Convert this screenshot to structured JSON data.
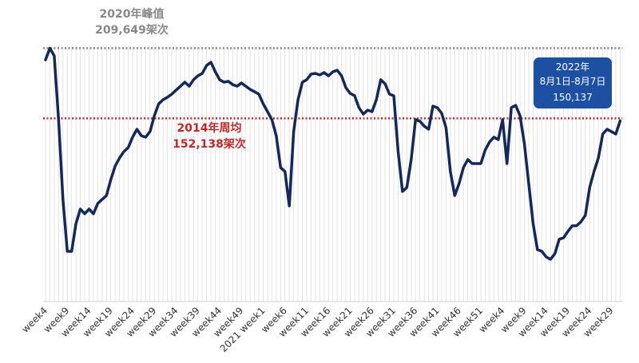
{
  "chart_data": {
    "type": "line",
    "categories": [
      "week4",
      null,
      null,
      null,
      null,
      "week9",
      null,
      null,
      null,
      null,
      "week14",
      null,
      null,
      null,
      null,
      "week19",
      null,
      null,
      null,
      null,
      "week24",
      null,
      null,
      null,
      null,
      "week29",
      null,
      null,
      null,
      null,
      "week34",
      null,
      null,
      null,
      null,
      "week39",
      null,
      null,
      null,
      null,
      "week44",
      null,
      null,
      null,
      null,
      "week49",
      null,
      null,
      null,
      null,
      "2021 week1",
      null,
      null,
      null,
      null,
      "week6",
      null,
      null,
      null,
      null,
      "week11",
      null,
      null,
      null,
      null,
      "week16",
      null,
      null,
      null,
      null,
      "week21",
      null,
      null,
      null,
      null,
      "week26",
      null,
      null,
      null,
      null,
      "week31",
      null,
      null,
      null,
      null,
      "week36",
      null,
      null,
      null,
      null,
      "week41",
      null,
      null,
      null,
      null,
      "week46",
      null,
      null,
      null,
      null,
      "week51",
      null,
      null,
      null,
      null,
      "week4",
      null,
      null,
      null,
      null,
      "week9",
      null,
      null,
      null,
      null,
      "week14",
      null,
      null,
      null,
      null,
      "week19",
      null,
      null,
      null,
      null,
      "week24",
      null,
      null,
      null,
      null,
      "week29",
      null,
      null
    ],
    "series": [
      {
        "color": "#14295a",
        "values": [
          200100,
          209649,
          203400,
          151000,
          85700,
          43200,
          43200,
          66000,
          77800,
          73900,
          77800,
          73900,
          82400,
          85700,
          88900,
          102000,
          113100,
          119700,
          124900,
          128200,
          136700,
          143200,
          137900,
          136700,
          141300,
          154300,
          164100,
          167400,
          169400,
          172000,
          175300,
          178500,
          181800,
          178500,
          183800,
          187000,
          189000,
          195500,
          198100,
          190300,
          183800,
          181800,
          182500,
          179800,
          178500,
          181100,
          178500,
          175900,
          174000,
          172000,
          164100,
          157600,
          151100,
          137900,
          111800,
          108600,
          80400,
          141300,
          167400,
          181800,
          183800,
          188400,
          189000,
          187700,
          189700,
          187000,
          190300,
          191600,
          187000,
          177200,
          172600,
          170700,
          160900,
          155600,
          158900,
          157600,
          167400,
          183800,
          180500,
          172000,
          170700,
          124900,
          92200,
          95500,
          118400,
          151100,
          149800,
          145800,
          143200,
          162200,
          160900,
          156300,
          144500,
          108600,
          88900,
          98700,
          111800,
          118400,
          115100,
          115100,
          115100,
          126200,
          132800,
          136700,
          134700,
          151100,
          115100,
          160900,
          162800,
          154300,
          131400,
          98700,
          66000,
          44500,
          43200,
          38600,
          36600,
          41200,
          53000,
          54300,
          59500,
          64100,
          64100,
          67400,
          72600,
          95500,
          108600,
          119700,
          139300,
          143200,
          141300,
          139300,
          150137
        ]
      }
    ],
    "ylim": [
      0,
      240000
    ],
    "grid": true,
    "reference_lines": [
      {
        "value": 209649,
        "color": "#888888",
        "label": [
          "2020年峰值",
          "209,649架次"
        ]
      },
      {
        "value": 152138,
        "color": "#c0282a",
        "label": [
          "2014年周均",
          "152,138架次"
        ]
      }
    ],
    "callout": {
      "color": "#1d4fa3",
      "lines": [
        "2022年",
        "8月1日-8月7日",
        "150,137"
      ]
    }
  }
}
